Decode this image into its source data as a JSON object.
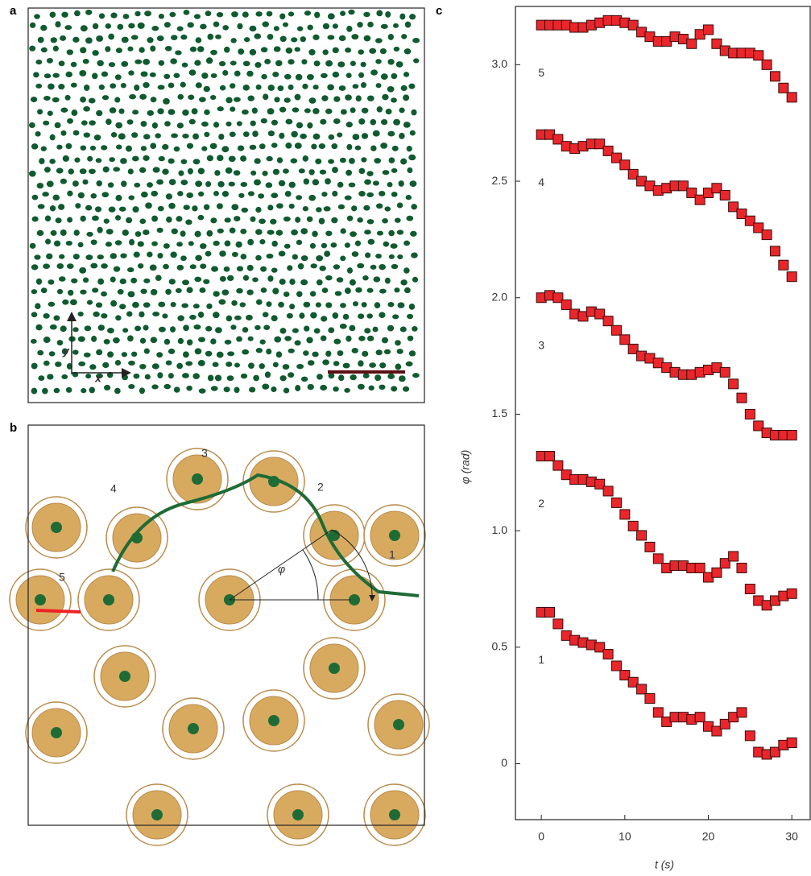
{
  "panels": {
    "a": {
      "label": "a",
      "y_axis": "y",
      "x_axis": "x"
    },
    "b": {
      "label": "b",
      "tracks": [
        "1",
        "2",
        "3",
        "4",
        "5"
      ],
      "angle": "φ"
    }
  },
  "chart_data": {
    "type": "scatter",
    "panel_label": "c",
    "x_label": "t (s)",
    "y_label": "φ (rad)",
    "x": [
      0,
      1,
      2,
      3,
      4,
      5,
      6,
      7,
      8,
      9,
      10,
      11,
      12,
      13,
      14,
      15,
      16,
      17,
      18,
      19,
      20,
      21,
      22,
      23,
      24,
      25,
      26,
      27,
      28,
      29,
      30
    ],
    "series": [
      {
        "name": "1",
        "color": "#e8262b",
        "values": [
          0.65,
          0.65,
          0.6,
          0.55,
          0.53,
          0.52,
          0.51,
          0.5,
          0.47,
          0.42,
          0.38,
          0.35,
          0.32,
          0.28,
          0.22,
          0.18,
          0.2,
          0.2,
          0.19,
          0.2,
          0.16,
          0.14,
          0.17,
          0.2,
          0.22,
          0.12,
          0.05,
          0.04,
          0.05,
          0.08,
          0.09
        ]
      },
      {
        "name": "2",
        "color": "#e8262b",
        "values": [
          1.32,
          1.32,
          1.28,
          1.24,
          1.22,
          1.22,
          1.21,
          1.2,
          1.17,
          1.12,
          1.07,
          1.02,
          0.98,
          0.93,
          0.88,
          0.84,
          0.85,
          0.85,
          0.84,
          0.84,
          0.8,
          0.82,
          0.86,
          0.89,
          0.84,
          0.75,
          0.7,
          0.68,
          0.7,
          0.72,
          0.73
        ]
      },
      {
        "name": "3",
        "color": "#e8262b",
        "values": [
          2.0,
          2.01,
          2.0,
          1.97,
          1.93,
          1.92,
          1.94,
          1.93,
          1.9,
          1.86,
          1.82,
          1.78,
          1.75,
          1.74,
          1.72,
          1.7,
          1.68,
          1.67,
          1.67,
          1.68,
          1.69,
          1.7,
          1.68,
          1.63,
          1.57,
          1.5,
          1.45,
          1.42,
          1.41,
          1.41,
          1.41
        ]
      },
      {
        "name": "4",
        "color": "#e8262b",
        "values": [
          2.7,
          2.7,
          2.68,
          2.65,
          2.64,
          2.65,
          2.66,
          2.66,
          2.63,
          2.6,
          2.57,
          2.53,
          2.5,
          2.48,
          2.46,
          2.47,
          2.48,
          2.48,
          2.45,
          2.42,
          2.45,
          2.47,
          2.44,
          2.39,
          2.36,
          2.33,
          2.3,
          2.27,
          2.2,
          2.14,
          2.09
        ]
      },
      {
        "name": "5",
        "color": "#e8262b",
        "values": [
          3.17,
          3.17,
          3.17,
          3.17,
          3.16,
          3.16,
          3.17,
          3.18,
          3.19,
          3.19,
          3.18,
          3.17,
          3.14,
          3.12,
          3.1,
          3.1,
          3.12,
          3.11,
          3.09,
          3.13,
          3.15,
          3.09,
          3.06,
          3.05,
          3.05,
          3.05,
          3.04,
          3.0,
          2.95,
          2.9,
          2.86
        ]
      }
    ],
    "xlim": [
      -3.1,
      32.2
    ],
    "xticks": [
      0,
      10,
      20,
      30
    ],
    "ylim": [
      -0.24,
      3.25
    ],
    "yticks": [
      0,
      0.5,
      {
        "value": 1,
        "label": "1.0"
      },
      1.5,
      {
        "value": 2,
        "label": "2.0"
      },
      2.5,
      {
        "value": 3,
        "label": "3.0"
      }
    ]
  }
}
